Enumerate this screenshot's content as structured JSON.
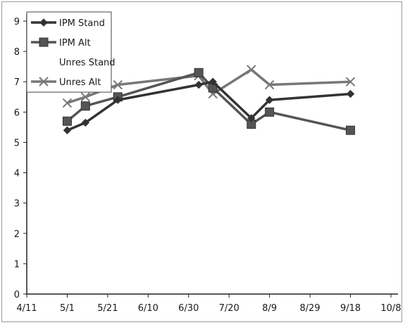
{
  "chart_data": {
    "type": "line",
    "title": "",
    "xlabel": "",
    "ylabel": "",
    "x_tick_labels": [
      "4/11",
      "5/1",
      "5/21",
      "6/10",
      "6/30",
      "7/20",
      "8/9",
      "8/29",
      "9/18",
      "10/8"
    ],
    "x_tick_dates": [
      "04-11",
      "05-01",
      "05-21",
      "06-10",
      "06-30",
      "07-20",
      "08-09",
      "08-29",
      "09-18",
      "10-08"
    ],
    "y_tick_labels": [
      "0",
      "1",
      "2",
      "3",
      "4",
      "5",
      "6",
      "7",
      "8",
      "9"
    ],
    "xlim": [
      "04-11",
      "10-08"
    ],
    "ylim": [
      0,
      9
    ],
    "grid": false,
    "legend_position": "top-left",
    "series": [
      {
        "name": "IPM Stand",
        "color": "#333333",
        "marker": "diamond",
        "points": [
          {
            "x": "05-01",
            "y": 5.4
          },
          {
            "x": "05-10",
            "y": 5.65
          },
          {
            "x": "05-26",
            "y": 6.4
          },
          {
            "x": "07-05",
            "y": 6.9
          },
          {
            "x": "07-12",
            "y": 7.0
          },
          {
            "x": "07-31",
            "y": 5.8
          },
          {
            "x": "08-09",
            "y": 6.4
          },
          {
            "x": "09-18",
            "y": 6.6
          }
        ]
      },
      {
        "name": "IPM Alt",
        "color": "#555555",
        "marker": "square",
        "points": [
          {
            "x": "05-01",
            "y": 5.7
          },
          {
            "x": "05-10",
            "y": 6.2
          },
          {
            "x": "05-26",
            "y": 6.5
          },
          {
            "x": "07-05",
            "y": 7.3
          },
          {
            "x": "07-12",
            "y": 6.8
          },
          {
            "x": "07-31",
            "y": 5.6
          },
          {
            "x": "08-09",
            "y": 6.0
          },
          {
            "x": "09-18",
            "y": 5.4
          }
        ]
      },
      {
        "name": "Unres Stand",
        "color": "#ffffff",
        "marker": "none",
        "points": []
      },
      {
        "name": "Unres Alt",
        "color": "#777777",
        "marker": "x",
        "points": [
          {
            "x": "05-01",
            "y": 6.3
          },
          {
            "x": "05-10",
            "y": 6.5
          },
          {
            "x": "05-26",
            "y": 6.9
          },
          {
            "x": "07-05",
            "y": 7.2
          },
          {
            "x": "07-12",
            "y": 6.6
          },
          {
            "x": "07-31",
            "y": 7.4
          },
          {
            "x": "08-09",
            "y": 6.9
          },
          {
            "x": "09-18",
            "y": 7.0
          }
        ]
      }
    ]
  }
}
